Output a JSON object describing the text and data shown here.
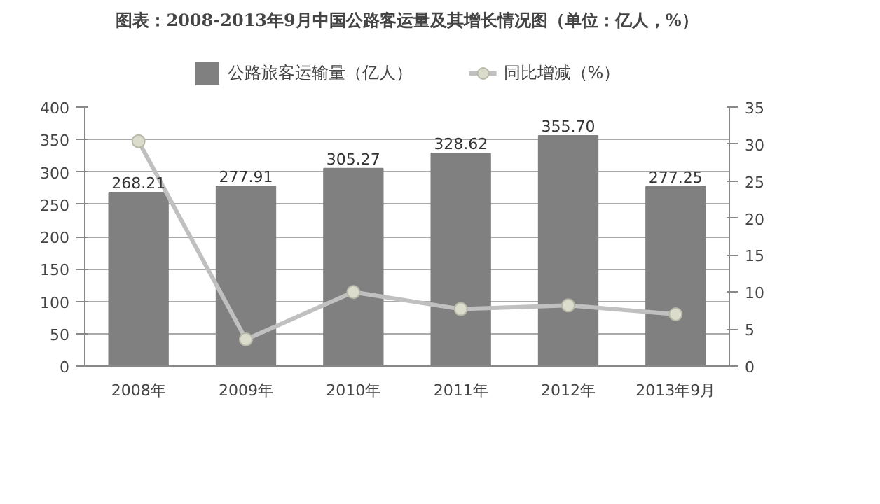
{
  "chart_data": {
    "type": "bar",
    "title": "图表：2008-2013年9月中国公路客运量及其增长情况图（单位：亿人，%）",
    "categories": [
      "2008年",
      "2009年",
      "2010年",
      "2011年",
      "2012年",
      "2013年9月"
    ],
    "series": [
      {
        "name": "公路旅客运输量（亿人）",
        "color": "#808080",
        "values": [
          268.21,
          277.91,
          305.27,
          328.62,
          355.7,
          277.25
        ],
        "value_labels": [
          "268.21",
          "277.91",
          "305.27",
          "328.62",
          "355.70",
          "277.25"
        ]
      },
      {
        "name": "同比增减（%）",
        "type": "line",
        "axis": "y2",
        "color": "#c0c0c0",
        "marker": "circle",
        "values": [
          30.4,
          3.6,
          10.0,
          7.7,
          8.2,
          7.0
        ]
      }
    ],
    "ylim": [
      0,
      400
    ],
    "yticks": [
      0,
      50,
      100,
      150,
      200,
      250,
      300,
      350,
      400
    ],
    "y2lim": [
      0,
      35
    ],
    "y2ticks": [
      0,
      5,
      10,
      15,
      20,
      25,
      30,
      35
    ],
    "grid": "y",
    "legend": "top"
  }
}
